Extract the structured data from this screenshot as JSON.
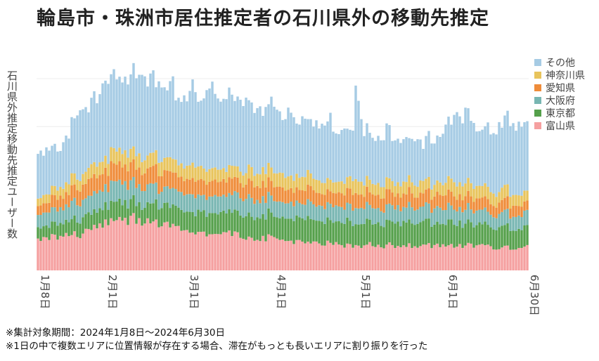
{
  "title": "輪島市・珠洲市居住推定者の石川県外の移動先推定",
  "footnotes": [
    "※集計対象期間：2024年1月8日～2024年6月30日",
    "※1日の中で複数エリアに位置情報が存在する場合、滞在がもっとも長いエリアに割り振りを行った"
  ],
  "chart_data": {
    "type": "bar",
    "stacked": true,
    "title": "輪島市・珠洲市居住推定者の石川県外の移動先推定",
    "ylabel": "石川県外推定移動先推定ユーザー数",
    "xlabel": "",
    "units_note": "Y axis has no printed tick values; values are in relative units where the top gridline = 100",
    "ylim": [
      0,
      100
    ],
    "y_gridlines": [
      100,
      75
    ],
    "start_date": "2024-01-08",
    "end_date": "2024-06-30",
    "x_tick_labels": [
      "1月8日",
      "2月1日",
      "3月1日",
      "4月1日",
      "5月1日",
      "6月1日",
      "6月30日"
    ],
    "legend_position": "right",
    "series_order_bottom_to_top": [
      "富山県",
      "東京都",
      "大阪府",
      "愛知県",
      "神奈川県",
      "その他"
    ],
    "legend_order": [
      "その他",
      "神奈川県",
      "愛知県",
      "大阪府",
      "東京都",
      "富山県"
    ],
    "colors": {
      "その他": "#a6cbe4",
      "神奈川県": "#e8c45c",
      "愛知県": "#ef8c3a",
      "大阪府": "#78b6b2",
      "東京都": "#55a04b",
      "富山県": "#f5a0a0"
    },
    "anchor_days": [
      0,
      8,
      15,
      24,
      28,
      37,
      43,
      50,
      58,
      70,
      79,
      93,
      105,
      110,
      112,
      113,
      116,
      124,
      138,
      145,
      148,
      160,
      163,
      167,
      174
    ],
    "series": [
      {
        "name": "その他",
        "anchor_totals": [
          62,
          65,
          82,
          98,
          100,
          104,
          97,
          93,
          93,
          91,
          86,
          80,
          76,
          72,
          73,
          99,
          72,
          71,
          67,
          72,
          83,
          73,
          75,
          80,
          74
        ]
      },
      {
        "name": "神奈川県",
        "anchor_values": [
          4,
          5,
          6,
          7,
          7,
          7,
          7,
          7,
          7,
          6,
          7,
          7,
          6,
          6,
          7,
          7,
          6,
          6,
          6,
          6,
          7,
          6,
          6,
          6,
          5
        ]
      },
      {
        "name": "愛知県",
        "anchor_values": [
          5,
          6,
          8,
          9,
          9,
          9,
          9,
          8,
          8,
          8,
          8,
          7,
          7,
          7,
          8,
          8,
          7,
          7,
          7,
          7,
          7,
          6,
          6,
          6,
          5
        ]
      },
      {
        "name": "大阪府",
        "anchor_values": [
          7,
          8,
          9,
          10,
          10,
          10,
          9,
          9,
          9,
          9,
          9,
          8,
          8,
          8,
          8,
          8,
          8,
          8,
          8,
          8,
          8,
          7,
          7,
          7,
          7
        ]
      },
      {
        "name": "東京都",
        "anchor_values": [
          6,
          7,
          8,
          9,
          9,
          9,
          10,
          10,
          11,
          11,
          12,
          12,
          12,
          12,
          12,
          12,
          12,
          12,
          12,
          12,
          12,
          11,
          11,
          11,
          10
        ]
      },
      {
        "name": "富山県",
        "anchor_values": [
          17,
          18,
          19,
          26,
          27,
          26,
          25,
          22,
          20,
          19,
          17,
          15,
          14,
          13,
          13,
          13,
          13,
          13,
          13,
          13,
          13,
          13,
          12,
          12,
          12
        ]
      }
    ]
  }
}
